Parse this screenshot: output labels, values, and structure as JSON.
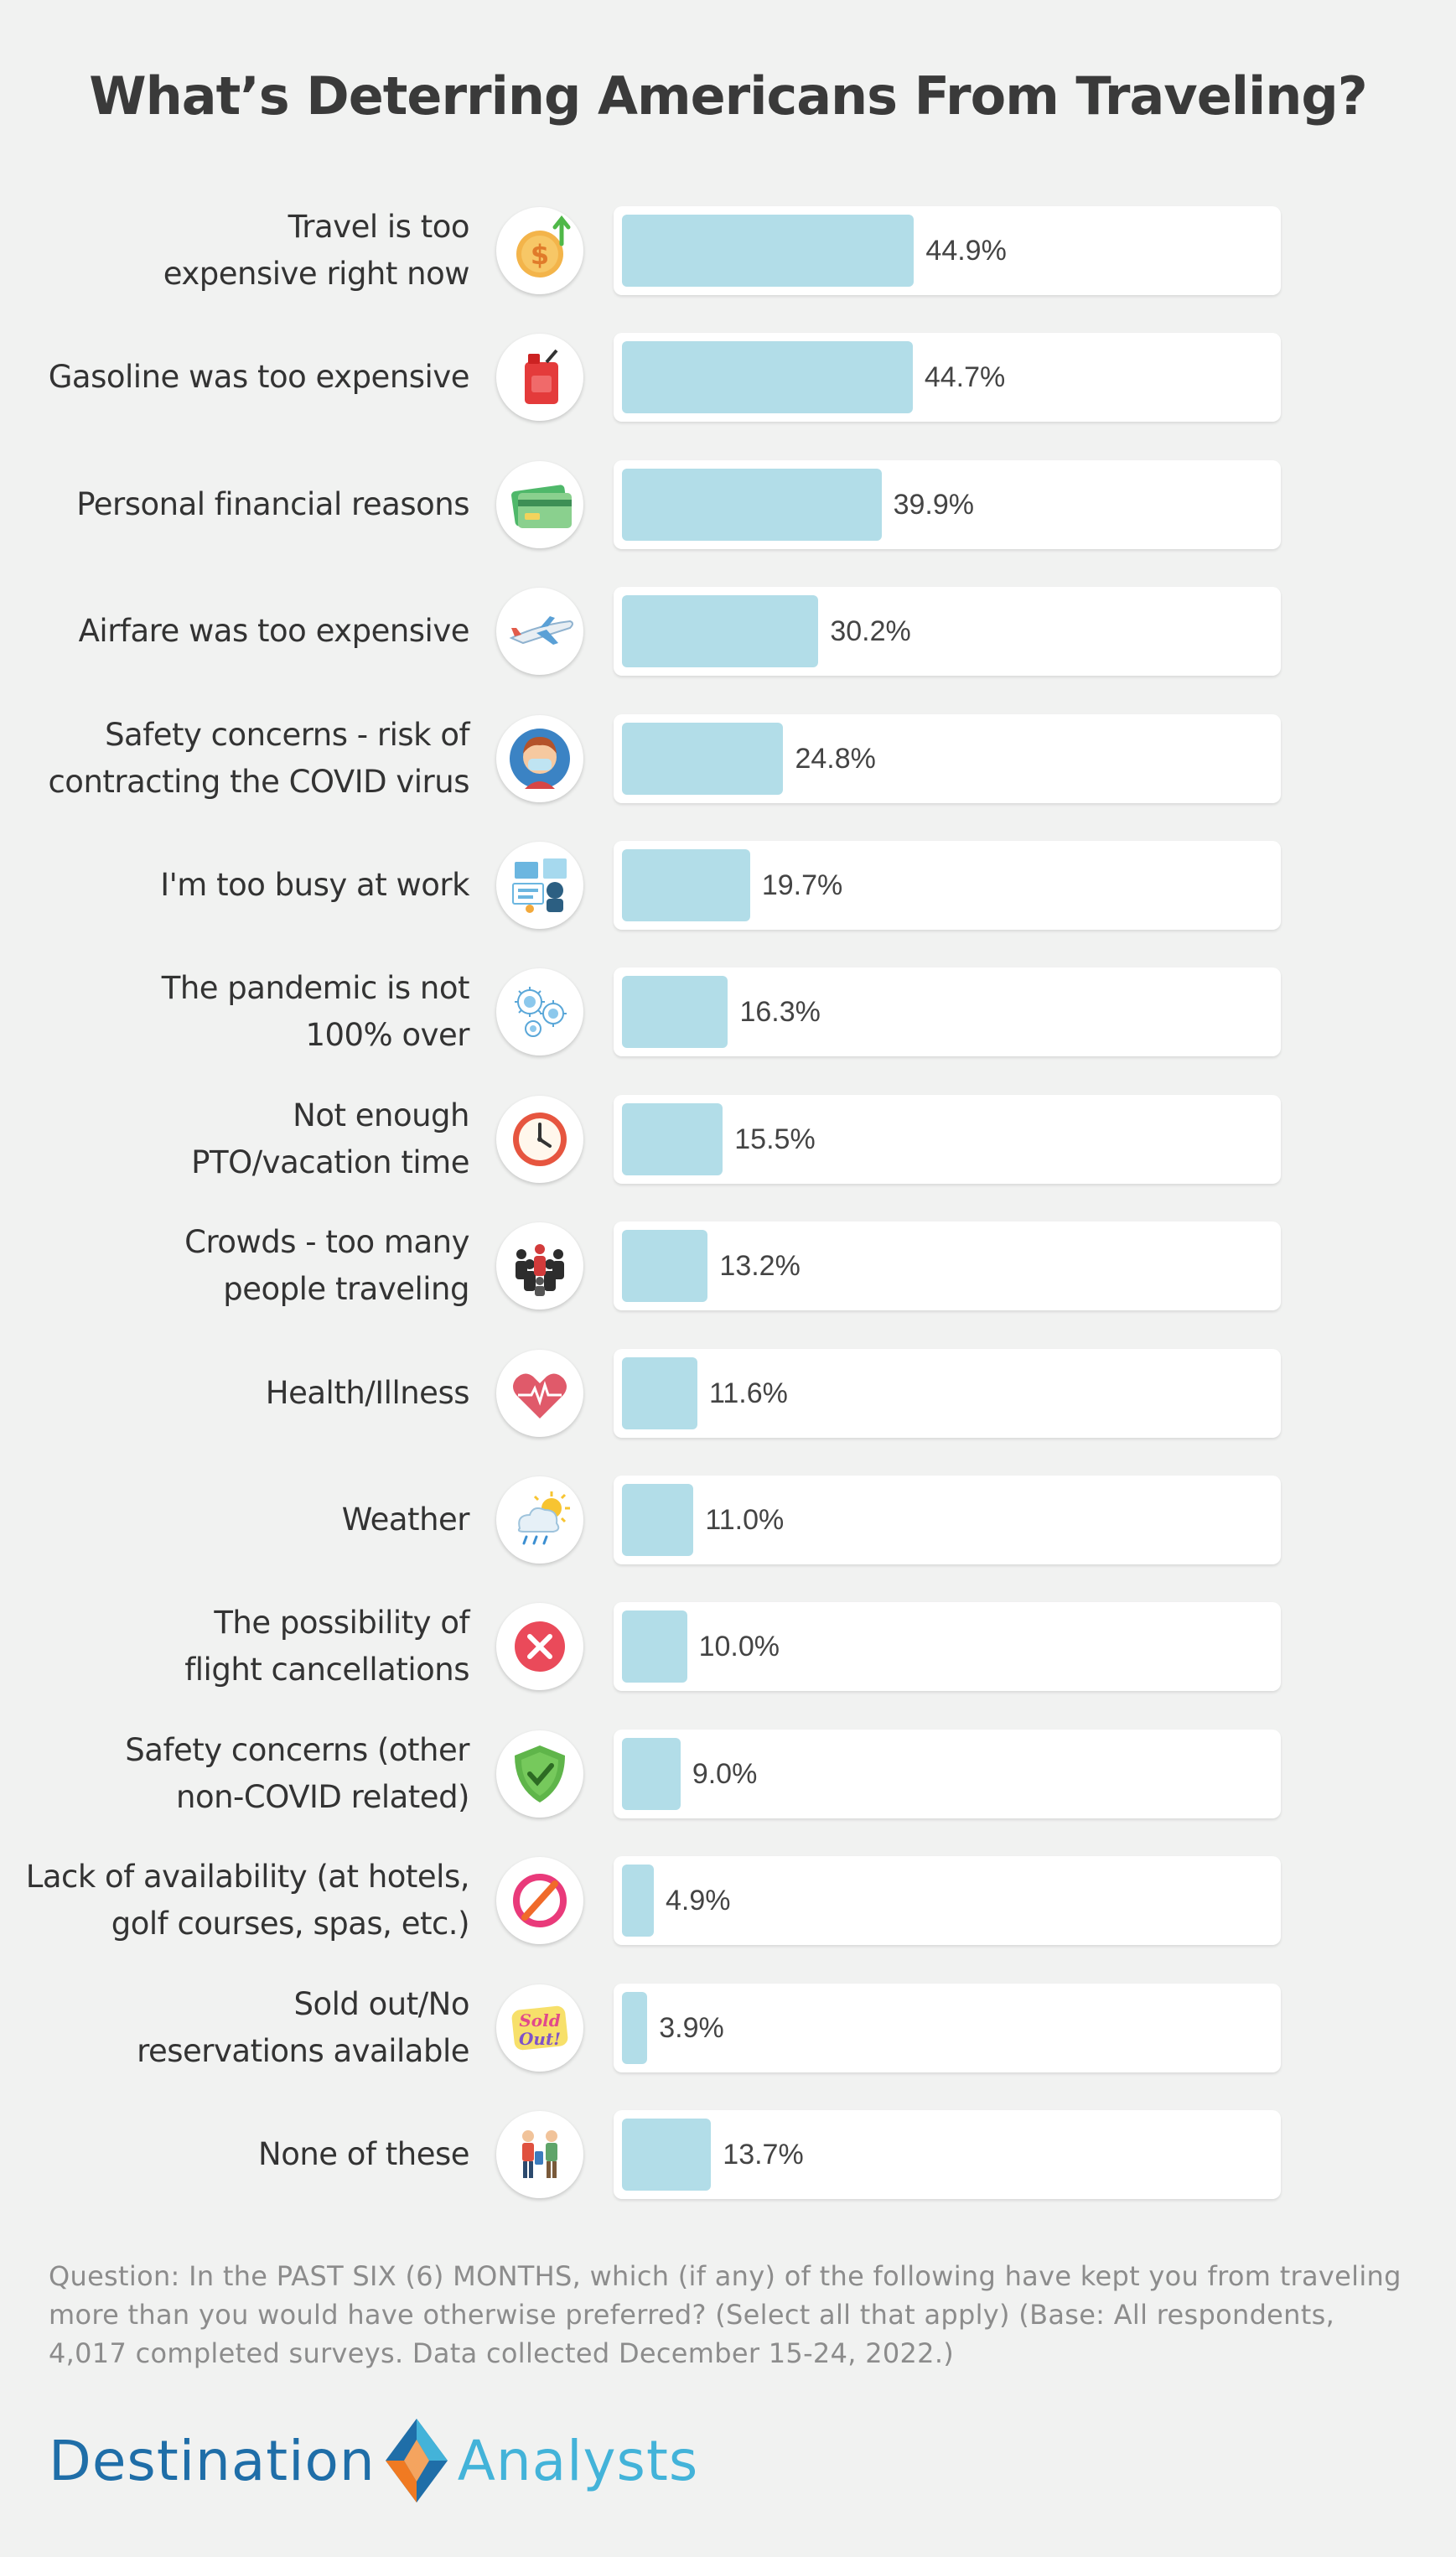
{
  "chart_data": {
    "type": "bar",
    "orientation": "horizontal",
    "title": "What’s Deterring Americans From Traveling?",
    "categories": [
      [
        "Travel is too",
        "expensive right now"
      ],
      [
        "Gasoline was too expensive"
      ],
      [
        "Personal financial reasons"
      ],
      [
        "Airfare was too expensive"
      ],
      [
        "Safety concerns - risk of",
        "contracting the COVID virus"
      ],
      [
        "I'm too busy at work"
      ],
      [
        "The pandemic is not",
        "100% over"
      ],
      [
        "Not enough",
        "PTO/vacation time"
      ],
      [
        "Crowds - too many",
        "people traveling"
      ],
      [
        "Health/Illness"
      ],
      [
        "Weather"
      ],
      [
        "The possibility of",
        "flight cancellations"
      ],
      [
        "Safety concerns (other",
        "non-COVID related)"
      ],
      [
        "Lack of availability (at hotels,",
        "golf courses, spas, etc.)"
      ],
      [
        "Sold out/No",
        "reservations available"
      ],
      [
        "None of these"
      ]
    ],
    "values": [
      44.9,
      44.7,
      39.9,
      30.2,
      24.8,
      19.7,
      16.3,
      15.5,
      13.2,
      11.6,
      11.0,
      10.0,
      9.0,
      4.9,
      3.9,
      13.7
    ],
    "value_labels": [
      "44.9%",
      "44.7%",
      "39.9%",
      "30.2%",
      "24.8%",
      "19.7%",
      "16.3%",
      "15.5%",
      "13.2%",
      "11.6%",
      "11.0%",
      "10.0%",
      "9.0%",
      "4.9%",
      "3.9%",
      "13.7%"
    ],
    "icons": [
      "money-up-icon",
      "gas-can-icon",
      "credit-card-icon",
      "airplane-icon",
      "masked-person-icon",
      "busy-work-icon",
      "virus-icon",
      "clock-icon",
      "crowd-icon",
      "heart-pulse-icon",
      "rain-sun-icon",
      "x-cancel-icon",
      "shield-check-icon",
      "no-symbol-icon",
      "sold-out-icon",
      "travelers-icon"
    ],
    "xlim": [
      0,
      100
    ],
    "bar_color": "#b2dde8",
    "grid": false,
    "legend": "none"
  },
  "footnote": "Question: In the PAST SIX (6) MONTHS, which (if any) of the following have kept you from traveling more than you would have otherwise preferred? (Select all that apply) (Base: All respondents, 4,017 completed surveys. Data collected December 15-24, 2022.)",
  "logo": {
    "word1": "Destination",
    "word2": "Analysts"
  }
}
